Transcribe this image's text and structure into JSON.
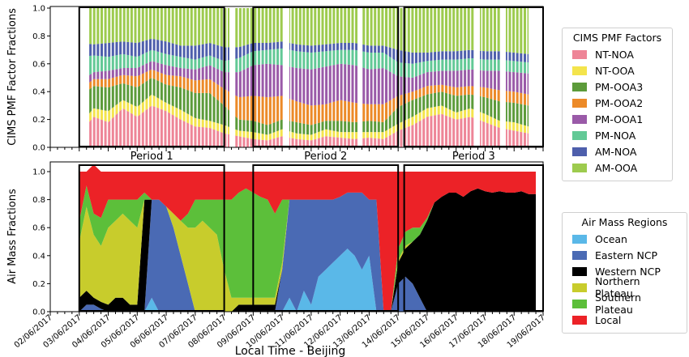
{
  "chart_data": [
    {
      "type": "area",
      "ylabel": "CIMS PMF Factor Fractions",
      "ylim": [
        0,
        1.0
      ],
      "yticks": [
        "0.0",
        "0.2",
        "0.4",
        "0.6",
        "0.8",
        "1.0"
      ],
      "xlim": [
        "02/06/2017",
        "19/06/2017"
      ],
      "periods": [
        {
          "label": "Period 1",
          "start": "2017-06-03T00:00",
          "end": "2017-06-08T00:00"
        },
        {
          "label": "Period 2",
          "start": "2017-06-09T00:00",
          "end": "2017-06-14T00:00"
        },
        {
          "label": "Period 3",
          "start": "2017-06-14T05:00",
          "end": "2017-06-19T00:00"
        }
      ],
      "legend_title": "CIMS PMF Factors",
      "legend_location": "right",
      "series": [
        {
          "name": "NT-NOA",
          "color": "#ee8597"
        },
        {
          "name": "NT-OOA",
          "color": "#f4e44c"
        },
        {
          "name": "PM-OOA3",
          "color": "#5c9b3a"
        },
        {
          "name": "PM-OOA2",
          "color": "#ec8a28"
        },
        {
          "name": "PM-OOA1",
          "color": "#9a5aa8"
        },
        {
          "name": "PM-NOA",
          "color": "#62c996"
        },
        {
          "name": "AM-NOA",
          "color": "#4e5fac"
        },
        {
          "name": "AM-OOA",
          "color": "#9dcb4e"
        }
      ],
      "x": [
        "2017-06-03T00:00",
        "2017-06-03T12:00",
        "2017-06-04T00:00",
        "2017-06-04T12:00",
        "2017-06-05T00:00",
        "2017-06-05T12:00",
        "2017-06-06T00:00",
        "2017-06-06T12:00",
        "2017-06-07T00:00",
        "2017-06-07T12:00",
        "2017-06-08T00:00",
        "2017-06-08T12:00",
        "2017-06-09T00:00",
        "2017-06-09T12:00",
        "2017-06-10T00:00",
        "2017-06-10T12:00",
        "2017-06-11T00:00",
        "2017-06-11T12:00",
        "2017-06-12T00:00",
        "2017-06-12T12:00",
        "2017-06-13T00:00",
        "2017-06-13T12:00",
        "2017-06-14T00:00",
        "2017-06-14T12:00",
        "2017-06-15T00:00",
        "2017-06-15T12:00",
        "2017-06-16T00:00",
        "2017-06-16T12:00",
        "2017-06-17T00:00",
        "2017-06-17T12:00",
        "2017-06-18T00:00",
        "2017-06-18T12:00"
      ],
      "stacked_values": [
        [
          0.1,
          0.22,
          0.18,
          0.28,
          0.22,
          0.3,
          0.26,
          0.2,
          0.15,
          0.14,
          0.1,
          0.08,
          0.06,
          0.05,
          0.08,
          0.06,
          0.05,
          0.08,
          0.07,
          0.06,
          0.07,
          0.06,
          0.12,
          0.16,
          0.22,
          0.24,
          0.2,
          0.22,
          0.18,
          0.14,
          0.12,
          0.1
        ],
        [
          0.06,
          0.06,
          0.08,
          0.06,
          0.07,
          0.08,
          0.06,
          0.07,
          0.06,
          0.05,
          0.06,
          0.04,
          0.05,
          0.04,
          0.05,
          0.04,
          0.04,
          0.05,
          0.04,
          0.05,
          0.04,
          0.05,
          0.05,
          0.06,
          0.06,
          0.06,
          0.05,
          0.06,
          0.06,
          0.05,
          0.06,
          0.05
        ],
        [
          0.2,
          0.16,
          0.17,
          0.12,
          0.14,
          0.12,
          0.13,
          0.16,
          0.18,
          0.2,
          0.14,
          0.08,
          0.08,
          0.07,
          0.07,
          0.08,
          0.07,
          0.06,
          0.08,
          0.07,
          0.08,
          0.07,
          0.12,
          0.12,
          0.1,
          0.1,
          0.12,
          0.1,
          0.12,
          0.14,
          0.14,
          0.15
        ],
        [
          0.05,
          0.05,
          0.06,
          0.06,
          0.08,
          0.06,
          0.07,
          0.08,
          0.09,
          0.1,
          0.12,
          0.16,
          0.18,
          0.2,
          0.17,
          0.15,
          0.14,
          0.12,
          0.15,
          0.14,
          0.12,
          0.13,
          0.08,
          0.06,
          0.06,
          0.05,
          0.06,
          0.06,
          0.07,
          0.08,
          0.08,
          0.08
        ],
        [
          0.06,
          0.05,
          0.06,
          0.05,
          0.06,
          0.06,
          0.07,
          0.06,
          0.08,
          0.1,
          0.12,
          0.18,
          0.22,
          0.24,
          0.22,
          0.24,
          0.26,
          0.27,
          0.26,
          0.27,
          0.25,
          0.26,
          0.14,
          0.1,
          0.1,
          0.1,
          0.12,
          0.12,
          0.12,
          0.14,
          0.14,
          0.15
        ],
        [
          0.18,
          0.12,
          0.1,
          0.1,
          0.08,
          0.08,
          0.08,
          0.08,
          0.07,
          0.07,
          0.08,
          0.1,
          0.1,
          0.1,
          0.12,
          0.12,
          0.12,
          0.11,
          0.1,
          0.11,
          0.12,
          0.11,
          0.1,
          0.1,
          0.08,
          0.08,
          0.08,
          0.08,
          0.08,
          0.08,
          0.08,
          0.08
        ],
        [
          0.1,
          0.08,
          0.1,
          0.09,
          0.1,
          0.08,
          0.09,
          0.08,
          0.1,
          0.09,
          0.1,
          0.08,
          0.06,
          0.05,
          0.05,
          0.05,
          0.05,
          0.05,
          0.05,
          0.05,
          0.05,
          0.05,
          0.09,
          0.08,
          0.06,
          0.06,
          0.06,
          0.06,
          0.06,
          0.06,
          0.06,
          0.06
        ],
        [
          0.25,
          0.26,
          0.25,
          0.24,
          0.25,
          0.22,
          0.24,
          0.27,
          0.27,
          0.25,
          0.28,
          0.28,
          0.25,
          0.25,
          0.24,
          0.26,
          0.27,
          0.26,
          0.25,
          0.25,
          0.27,
          0.27,
          0.3,
          0.32,
          0.32,
          0.31,
          0.31,
          0.3,
          0.31,
          0.31,
          0.32,
          0.33
        ]
      ]
    },
    {
      "type": "area",
      "ylabel": "Air Mass Fractions",
      "xlabel": "Local Time - Beijing",
      "ylim": [
        0,
        1.0
      ],
      "yticks": [
        "0.0",
        "0.2",
        "0.4",
        "0.6",
        "0.8",
        "1.0"
      ],
      "xlim": [
        "02/06/2017",
        "19/06/2017"
      ],
      "xticklabels": [
        "02/06/2017",
        "03/06/2017",
        "04/06/2017",
        "05/06/2017",
        "06/06/2017",
        "07/06/2017",
        "08/06/2017",
        "09/06/2017",
        "10/06/2017",
        "11/06/2017",
        "12/06/2017",
        "13/06/2017",
        "14/06/2017",
        "15/06/2017",
        "16/06/2017",
        "17/06/2017",
        "18/06/2017",
        "19/06/2017"
      ],
      "legend_title": "Air Mass Regions",
      "legend_location": "right",
      "series": [
        {
          "name": "Ocean",
          "color": "#5ab8e8"
        },
        {
          "name": "Eastern NCP",
          "color": "#4a6ab4"
        },
        {
          "name": "Western NCP",
          "color": "#000000"
        },
        {
          "name": "Northern Plateau",
          "color": "#c8cc2c"
        },
        {
          "name": "Southern Plateau",
          "color": "#5cbf3a"
        },
        {
          "name": "Local",
          "color": "#ec2227"
        }
      ],
      "x": [
        "2017-06-03T00:00",
        "2017-06-03T06:00",
        "2017-06-03T12:00",
        "2017-06-03T18:00",
        "2017-06-04T00:00",
        "2017-06-04T06:00",
        "2017-06-04T12:00",
        "2017-06-04T18:00",
        "2017-06-05T00:00",
        "2017-06-05T06:00",
        "2017-06-05T12:00",
        "2017-06-05T18:00",
        "2017-06-06T00:00",
        "2017-06-06T06:00",
        "2017-06-06T12:00",
        "2017-06-06T18:00",
        "2017-06-07T00:00",
        "2017-06-07T06:00",
        "2017-06-07T12:00",
        "2017-06-07T18:00",
        "2017-06-08T00:00",
        "2017-06-08T06:00",
        "2017-06-08T12:00",
        "2017-06-08T18:00",
        "2017-06-09T00:00",
        "2017-06-09T06:00",
        "2017-06-09T12:00",
        "2017-06-09T18:00",
        "2017-06-10T00:00",
        "2017-06-10T06:00",
        "2017-06-10T12:00",
        "2017-06-10T18:00",
        "2017-06-11T00:00",
        "2017-06-11T06:00",
        "2017-06-11T12:00",
        "2017-06-11T18:00",
        "2017-06-12T00:00",
        "2017-06-12T06:00",
        "2017-06-12T12:00",
        "2017-06-12T18:00",
        "2017-06-13T00:00",
        "2017-06-13T06:00",
        "2017-06-13T12:00",
        "2017-06-13T18:00",
        "2017-06-14T00:00",
        "2017-06-14T06:00",
        "2017-06-14T12:00",
        "2017-06-14T18:00",
        "2017-06-15T00:00",
        "2017-06-15T06:00",
        "2017-06-15T12:00",
        "2017-06-15T18:00",
        "2017-06-16T00:00",
        "2017-06-16T06:00",
        "2017-06-16T12:00",
        "2017-06-16T18:00",
        "2017-06-17T00:00",
        "2017-06-17T06:00",
        "2017-06-17T12:00",
        "2017-06-17T18:00",
        "2017-06-18T00:00",
        "2017-06-18T06:00",
        "2017-06-18T12:00",
        "2017-06-18T18:00"
      ],
      "stacked_values": [
        [
          0.0,
          0.0,
          0.0,
          0.0,
          0.0,
          0.0,
          0.0,
          0.0,
          0.0,
          0.0,
          0.1,
          0.0,
          0.0,
          0.0,
          0.0,
          0.0,
          0.0,
          0.0,
          0.0,
          0.0,
          0.0,
          0.0,
          0.0,
          0.0,
          0.0,
          0.0,
          0.0,
          0.0,
          0.0,
          0.1,
          0.0,
          0.15,
          0.05,
          0.25,
          0.3,
          0.35,
          0.4,
          0.45,
          0.4,
          0.3,
          0.4,
          0.0,
          0.0,
          0.0,
          0.0,
          0.0,
          0.0,
          0.0,
          0.0,
          0.0,
          0.0,
          0.0,
          0.0,
          0.0,
          0.0,
          0.0,
          0.0,
          0.0,
          0.0,
          0.0,
          0.0,
          0.0,
          0.0,
          0.0
        ],
        [
          0.0,
          0.05,
          0.05,
          0.02,
          0.0,
          0.0,
          0.0,
          0.0,
          0.0,
          0.0,
          0.7,
          0.8,
          0.75,
          0.6,
          0.4,
          0.2,
          0.0,
          0.0,
          0.0,
          0.0,
          0.0,
          0.0,
          0.0,
          0.0,
          0.0,
          0.0,
          0.0,
          0.0,
          0.3,
          0.7,
          0.8,
          0.65,
          0.75,
          0.55,
          0.5,
          0.45,
          0.42,
          0.4,
          0.45,
          0.55,
          0.4,
          0.8,
          0.0,
          0.0,
          0.2,
          0.25,
          0.2,
          0.1,
          0.0,
          0.0,
          0.0,
          0.0,
          0.0,
          0.0,
          0.0,
          0.0,
          0.0,
          0.0,
          0.0,
          0.0,
          0.0,
          0.0,
          0.0,
          0.0
        ],
        [
          0.1,
          0.1,
          0.05,
          0.05,
          0.05,
          0.1,
          0.1,
          0.05,
          0.05,
          0.8,
          0.0,
          0.0,
          0.0,
          0.0,
          0.0,
          0.0,
          0.0,
          0.0,
          0.0,
          0.0,
          0.0,
          0.0,
          0.05,
          0.05,
          0.05,
          0.05,
          0.05,
          0.05,
          0.0,
          0.0,
          0.0,
          0.0,
          0.0,
          0.0,
          0.0,
          0.0,
          0.0,
          0.0,
          0.0,
          0.0,
          0.0,
          0.0,
          0.0,
          0.0,
          0.15,
          0.2,
          0.3,
          0.45,
          0.65,
          0.78,
          0.82,
          0.85,
          0.85,
          0.82,
          0.86,
          0.88,
          0.86,
          0.85,
          0.86,
          0.85,
          0.85,
          0.86,
          0.84,
          0.84
        ],
        [
          0.4,
          0.6,
          0.45,
          0.4,
          0.55,
          0.55,
          0.6,
          0.6,
          0.55,
          0.0,
          0.0,
          0.0,
          0.0,
          0.1,
          0.25,
          0.4,
          0.6,
          0.65,
          0.6,
          0.55,
          0.3,
          0.1,
          0.05,
          0.05,
          0.05,
          0.05,
          0.05,
          0.05,
          0.05,
          0.0,
          0.0,
          0.0,
          0.0,
          0.0,
          0.0,
          0.0,
          0.0,
          0.0,
          0.0,
          0.0,
          0.0,
          0.0,
          0.0,
          0.0,
          0.02,
          0.02,
          0.0,
          0.0,
          0.0,
          0.0,
          0.0,
          0.0,
          0.0,
          0.0,
          0.0,
          0.0,
          0.0,
          0.0,
          0.0,
          0.0,
          0.0,
          0.0,
          0.0,
          0.0
        ],
        [
          0.15,
          0.15,
          0.15,
          0.2,
          0.2,
          0.15,
          0.1,
          0.15,
          0.2,
          0.05,
          0.0,
          0.0,
          0.0,
          0.0,
          0.0,
          0.1,
          0.2,
          0.15,
          0.2,
          0.25,
          0.5,
          0.7,
          0.75,
          0.78,
          0.75,
          0.72,
          0.7,
          0.6,
          0.45,
          0.0,
          0.0,
          0.0,
          0.0,
          0.0,
          0.0,
          0.0,
          0.0,
          0.0,
          0.0,
          0.0,
          0.0,
          0.0,
          0.0,
          0.0,
          0.08,
          0.1,
          0.1,
          0.05,
          0.02,
          0.0,
          0.0,
          0.0,
          0.0,
          0.0,
          0.0,
          0.0,
          0.0,
          0.0,
          0.0,
          0.0,
          0.0,
          0.0,
          0.0,
          0.0
        ],
        [
          0.35,
          0.1,
          0.35,
          0.33,
          0.2,
          0.2,
          0.2,
          0.2,
          0.2,
          0.15,
          0.2,
          0.2,
          0.25,
          0.3,
          0.35,
          0.3,
          0.2,
          0.2,
          0.2,
          0.2,
          0.2,
          0.2,
          0.15,
          0.12,
          0.15,
          0.18,
          0.2,
          0.3,
          0.2,
          0.2,
          0.2,
          0.2,
          0.2,
          0.2,
          0.2,
          0.2,
          0.18,
          0.15,
          0.15,
          0.15,
          0.2,
          0.2,
          1.0,
          1.0,
          0.55,
          0.43,
          0.4,
          0.4,
          0.33,
          0.22,
          0.18,
          0.15,
          0.15,
          0.18,
          0.14,
          0.12,
          0.14,
          0.15,
          0.14,
          0.15,
          0.15,
          0.14,
          0.16,
          0.16
        ]
      ]
    }
  ]
}
